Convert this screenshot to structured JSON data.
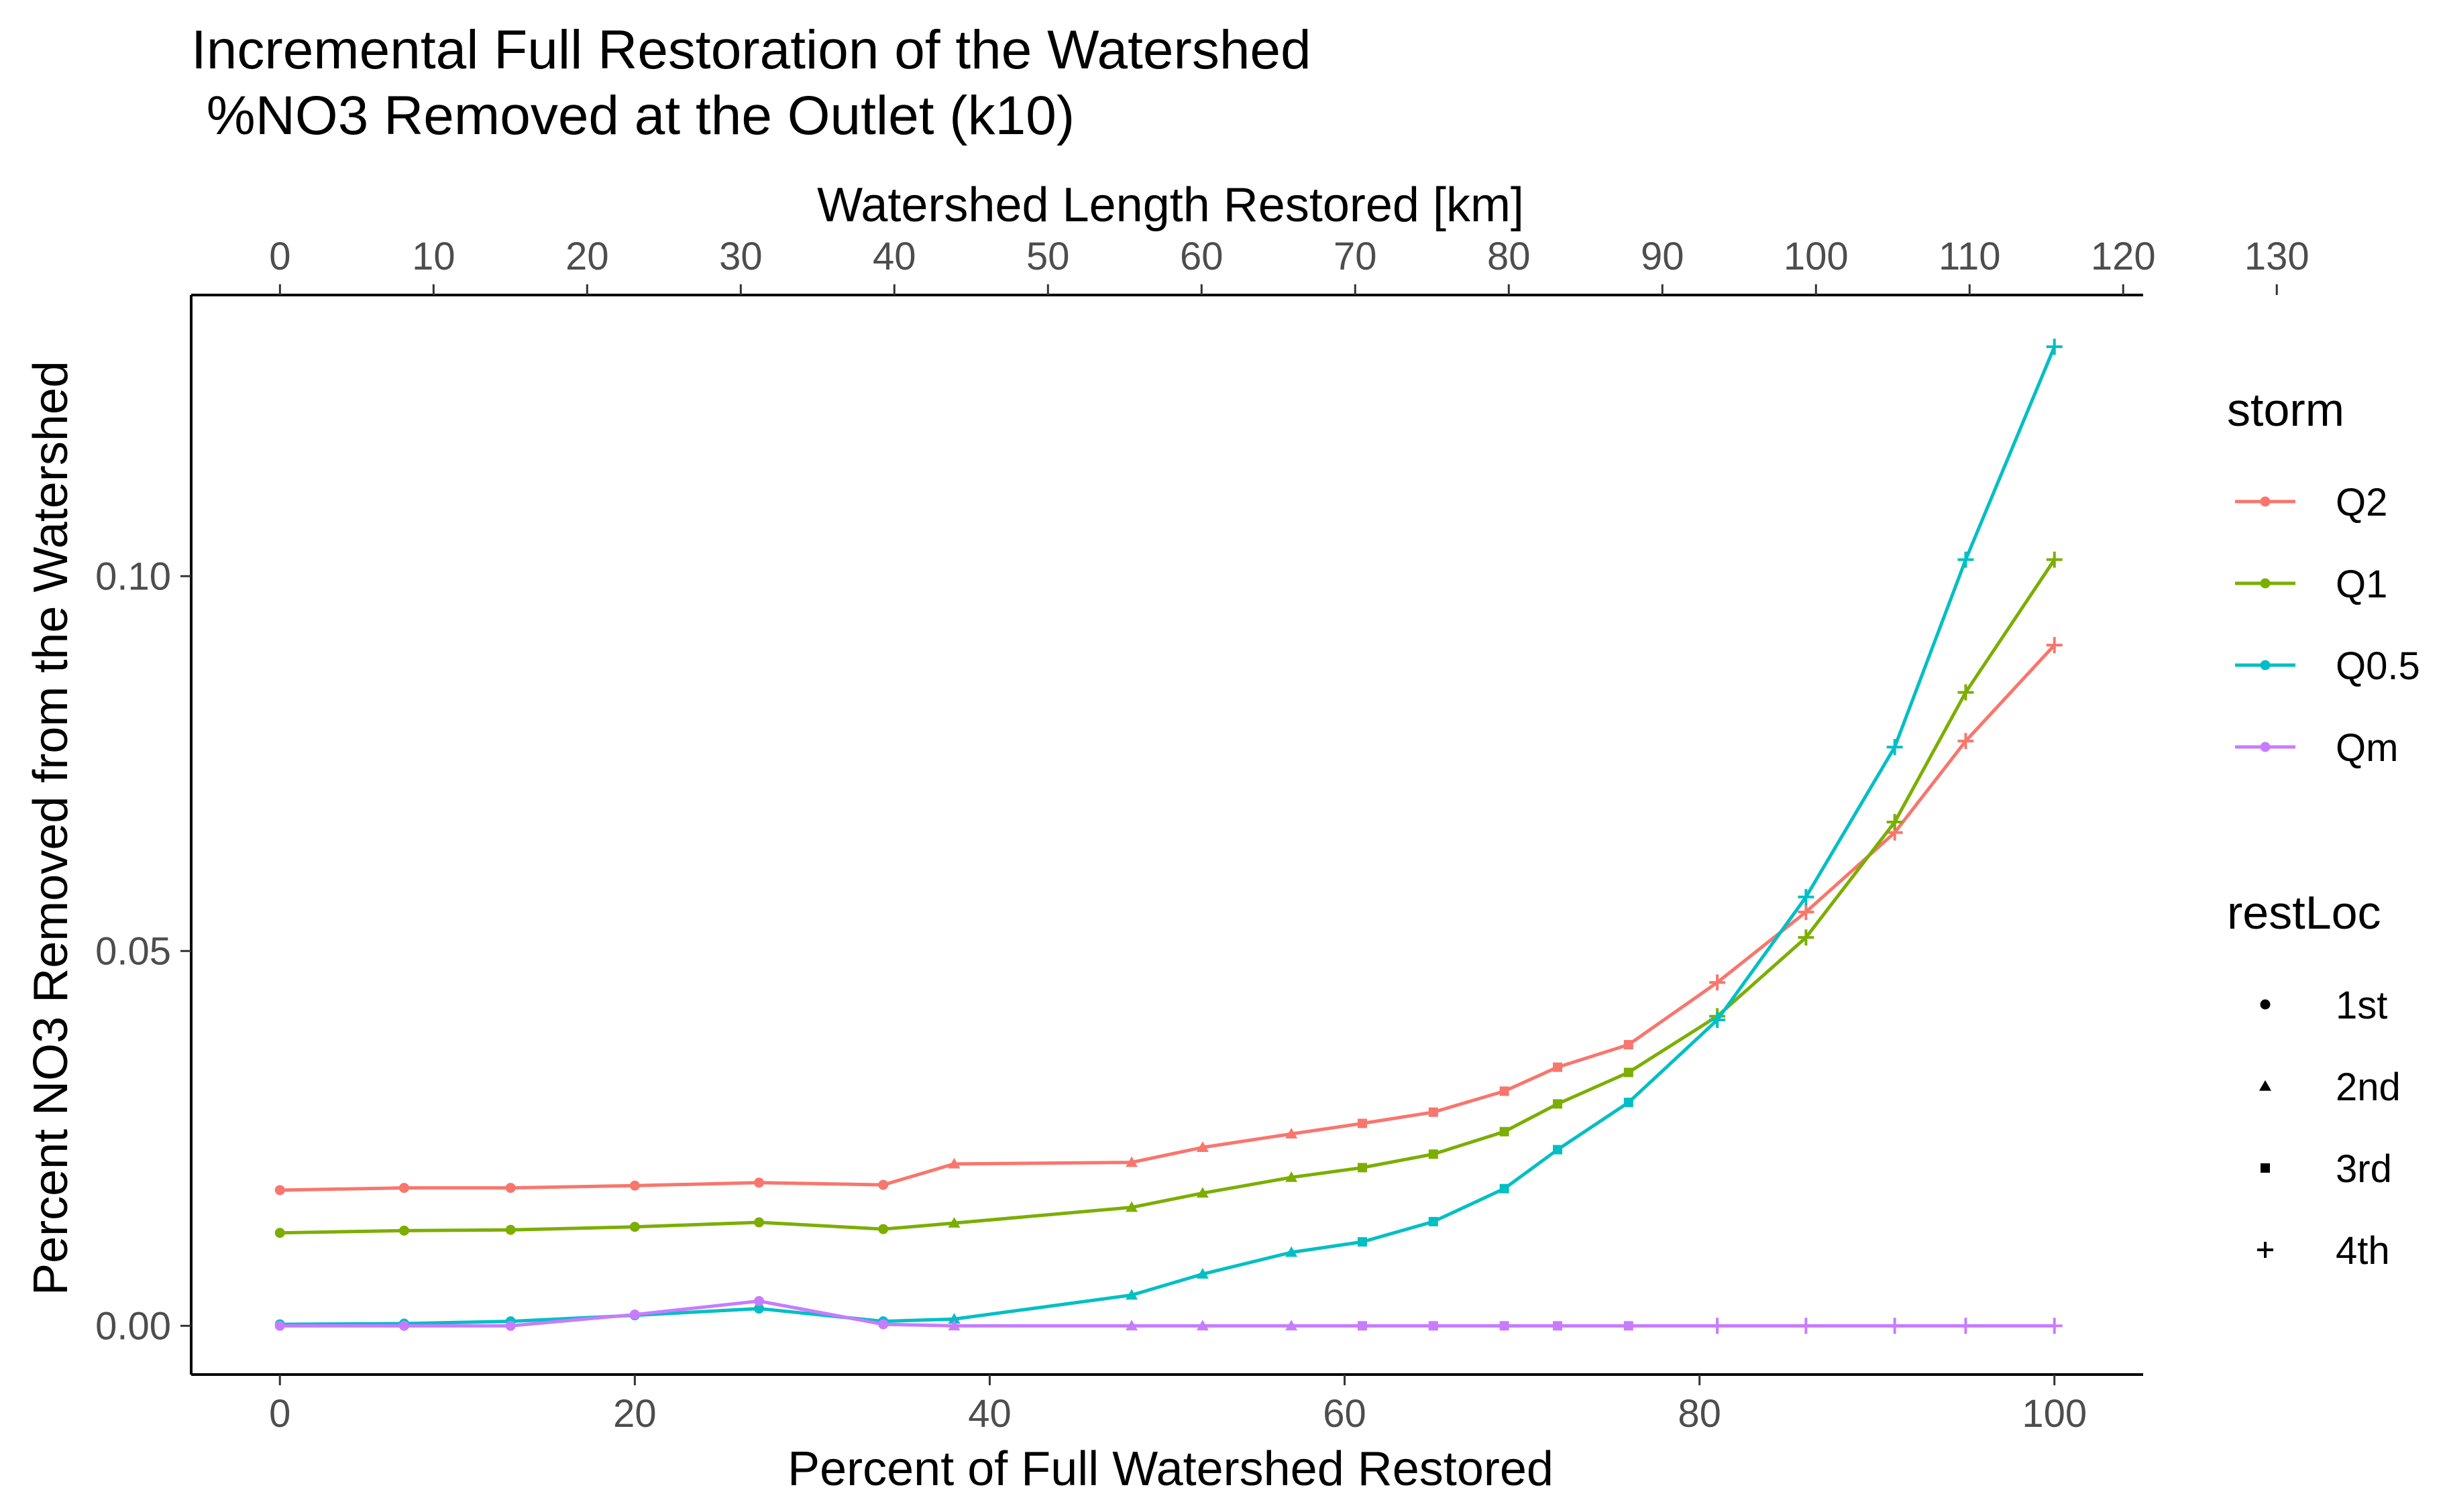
{
  "chart_data": {
    "type": "line",
    "title": "Incremental Full Restoration of the Watershed",
    "subtitle": " %NO3 Removed at the Outlet (k10)",
    "xlabel": "Percent of Full Watershed Restored",
    "ylabel": "Percent NO3 Removed from the Watershed",
    "x2label": "Watershed Length Restored [km]",
    "xlim": [
      -5,
      105
    ],
    "ylim": [
      -0.0065,
      0.1375
    ],
    "x2lim": [
      -5.78,
      121.3
    ],
    "xticks": [
      0,
      20,
      40,
      60,
      80,
      100
    ],
    "xtick_labels": [
      "0",
      "20",
      "40",
      "60",
      "80",
      "100"
    ],
    "yticks": [
      0,
      0.05,
      0.1
    ],
    "ytick_labels": [
      "0.00",
      "0.05",
      "0.10"
    ],
    "x2ticks": [
      0,
      10,
      20,
      30,
      40,
      50,
      60,
      70,
      80,
      90,
      100,
      110,
      120,
      130
    ],
    "x2tick_labels": [
      "0",
      "10",
      "20",
      "30",
      "40",
      "50",
      "60",
      "70",
      "80",
      "90",
      "100",
      "110",
      "120",
      "130"
    ],
    "grid": false,
    "legend_position": "right",
    "x": [
      0,
      7,
      13,
      20,
      27,
      34,
      38,
      48,
      52,
      57,
      61,
      65,
      69,
      72,
      76,
      81,
      86,
      91,
      95,
      100
    ],
    "restLoc": [
      "1st",
      "1st",
      "1st",
      "1st",
      "1st",
      "1st",
      "2nd",
      "2nd",
      "2nd",
      "2nd",
      "3rd",
      "3rd",
      "3rd",
      "3rd",
      "3rd",
      "4th",
      "4th",
      "4th",
      "4th",
      "4th"
    ],
    "series": [
      {
        "name": "Q2",
        "color": "#F8766D",
        "values": [
          0.0181,
          0.0184,
          0.0184,
          0.0187,
          0.0191,
          0.0188,
          0.0216,
          0.0218,
          0.0238,
          0.0256,
          0.027,
          0.0285,
          0.0313,
          0.0345,
          0.0375,
          0.0458,
          0.0552,
          0.0658,
          0.078,
          0.0908
        ]
      },
      {
        "name": "Q1",
        "color": "#7CAE00",
        "values": [
          0.0124,
          0.0127,
          0.0128,
          0.0132,
          0.0138,
          0.0129,
          0.0137,
          0.0158,
          0.0177,
          0.0198,
          0.0211,
          0.0229,
          0.0259,
          0.0296,
          0.0338,
          0.0413,
          0.0518,
          0.0672,
          0.0845,
          0.1022
        ]
      },
      {
        "name": "Q0.5",
        "color": "#00BFC4",
        "values": [
          0.0002,
          0.0003,
          0.0006,
          0.0014,
          0.0023,
          0.0006,
          0.0009,
          0.0041,
          0.0069,
          0.0098,
          0.0112,
          0.0139,
          0.0183,
          0.0235,
          0.0298,
          0.0408,
          0.0572,
          0.0772,
          0.1022,
          0.1306
        ]
      },
      {
        "name": "Qm",
        "color": "#C77CFF",
        "values": [
          0.0,
          0.0,
          0.0,
          0.0015,
          0.0033,
          0.0002,
          0.0,
          0.0,
          0.0,
          0.0,
          0.0,
          0.0,
          0.0,
          0.0,
          0.0,
          0.0,
          0.0,
          0.0,
          0.0,
          0.0
        ]
      }
    ],
    "legend": {
      "storm_title": "storm",
      "storm": [
        "Q2",
        "Q1",
        "Q0.5",
        "Qm"
      ],
      "restLoc_title": "restLoc",
      "restLoc": [
        "1st",
        "2nd",
        "3rd",
        "4th"
      ],
      "restLoc_shapes": [
        "circle",
        "triangle",
        "square",
        "plus"
      ]
    }
  }
}
